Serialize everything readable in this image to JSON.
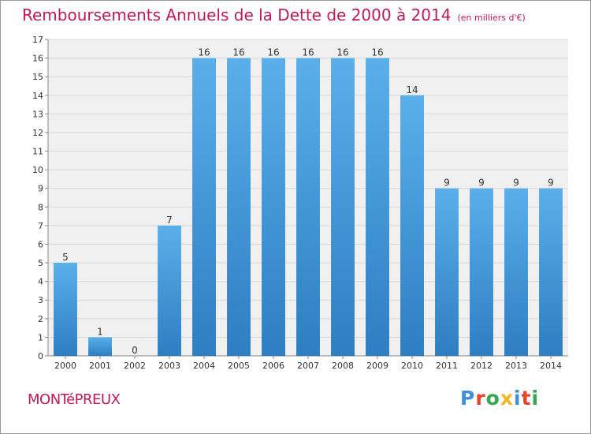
{
  "header": {
    "title": "Remboursements Annuels de la Dette de 2000 à 2014",
    "unit": "(en milliers d'€)"
  },
  "footer": {
    "town": "MONTéPREUX",
    "logo": {
      "letters": [
        "P",
        "r",
        "o",
        "x",
        "i",
        "t",
        "i"
      ],
      "colors": [
        "#3f8fd8",
        "#e8412c",
        "#2fa84f",
        "#f2b824",
        "#3f8fd8",
        "#e8412c",
        "#2fa84f"
      ]
    }
  },
  "chart_data": {
    "type": "bar",
    "title": "Remboursements Annuels de la Dette de 2000 à 2014",
    "xlabel": "",
    "ylabel": "",
    "categories": [
      "2000",
      "2001",
      "2002",
      "2003",
      "2004",
      "2005",
      "2006",
      "2007",
      "2008",
      "2009",
      "2010",
      "2011",
      "2012",
      "2013",
      "2014"
    ],
    "values": [
      5,
      1,
      0,
      7,
      16,
      16,
      16,
      16,
      16,
      16,
      14,
      9,
      9,
      9,
      9
    ],
    "ylim": [
      0,
      17
    ],
    "yticks": [
      0,
      1,
      2,
      3,
      4,
      5,
      6,
      7,
      8,
      9,
      10,
      11,
      12,
      13,
      14,
      15,
      16,
      17
    ],
    "grid": true,
    "bar_color_top": "#5aafea",
    "bar_color_bottom": "#2d7ec2",
    "background": "#f0f0f0"
  }
}
